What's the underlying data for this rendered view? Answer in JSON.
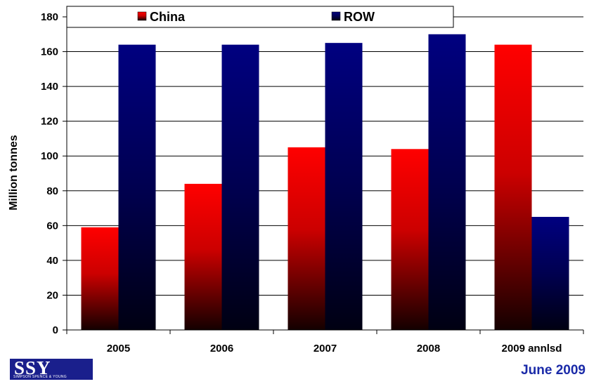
{
  "chart_data": {
    "type": "bar",
    "categories": [
      "2005",
      "2006",
      "2007",
      "2008",
      "2009 annlsd"
    ],
    "series": [
      {
        "name": "China",
        "values": [
          59,
          84,
          105,
          104,
          164
        ],
        "color": "#ff0000"
      },
      {
        "name": "ROW",
        "values": [
          164,
          164,
          165,
          170,
          65
        ],
        "color": "#000080"
      }
    ],
    "ylabel": "Million tonnes",
    "xlabel": "",
    "ylim": [
      0,
      180
    ],
    "yticks": [
      0,
      20,
      40,
      60,
      80,
      100,
      120,
      140,
      160,
      180
    ],
    "grid": true,
    "legend_position": "top"
  },
  "footer": {
    "logo_text": "SSY",
    "logo_subtext": "SIMPSON SPENCE & YOUNG",
    "date": "June 2009"
  }
}
